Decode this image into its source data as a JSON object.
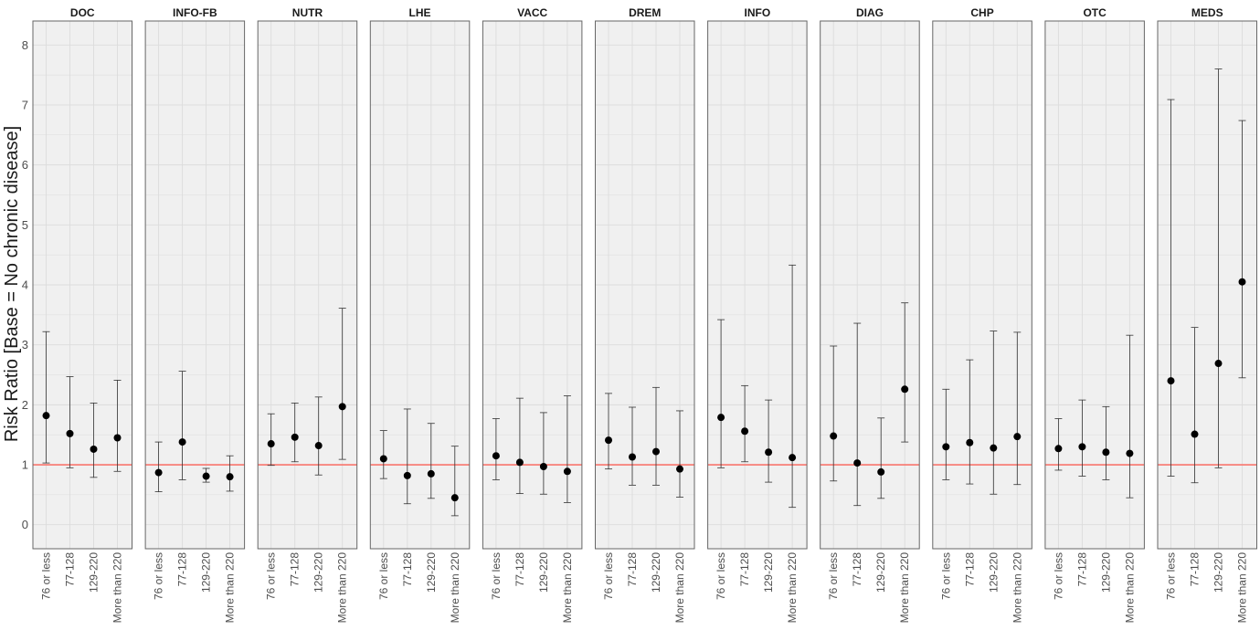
{
  "chart_data": {
    "type": "scatter",
    "subtype": "point-range faceted",
    "ylabel": "Risk Ratio [Base = No chronic disease]",
    "xlabel": "",
    "ylim": [
      -0.4,
      8.4
    ],
    "yticks": [
      0,
      1,
      2,
      3,
      4,
      5,
      6,
      7,
      8
    ],
    "grid": true,
    "reference_line": {
      "y": 1,
      "color": "#f8766d"
    },
    "colors": {
      "panel": "#f0f0f0",
      "grid": "#dcdcdc",
      "point": "#000000",
      "reference": "#f8766d",
      "border": "#666666"
    },
    "categories": [
      "76 or less",
      "77-128",
      "129-220",
      "More than 220"
    ],
    "panels": [
      {
        "name": "DOC",
        "points": [
          {
            "category": "76 or less",
            "estimate": 1.82,
            "lower": 1.03,
            "upper": 3.22
          },
          {
            "category": "77-128",
            "estimate": 1.52,
            "lower": 0.95,
            "upper": 2.47
          },
          {
            "category": "129-220",
            "estimate": 1.26,
            "lower": 0.79,
            "upper": 2.03
          },
          {
            "category": "More than 220",
            "estimate": 1.45,
            "lower": 0.89,
            "upper": 2.41
          }
        ]
      },
      {
        "name": "INFO-FB",
        "points": [
          {
            "category": "76 or less",
            "estimate": 0.87,
            "lower": 0.55,
            "upper": 1.38
          },
          {
            "category": "77-128",
            "estimate": 1.38,
            "lower": 0.75,
            "upper": 2.56
          },
          {
            "category": "129-220",
            "estimate": 0.81,
            "lower": 0.71,
            "upper": 0.94
          },
          {
            "category": "More than 220",
            "estimate": 0.8,
            "lower": 0.56,
            "upper": 1.15
          }
        ]
      },
      {
        "name": "NUTR",
        "points": [
          {
            "category": "76 or less",
            "estimate": 1.35,
            "lower": 0.99,
            "upper": 1.85
          },
          {
            "category": "77-128",
            "estimate": 1.46,
            "lower": 1.05,
            "upper": 2.03
          },
          {
            "category": "129-220",
            "estimate": 1.32,
            "lower": 0.83,
            "upper": 2.13
          },
          {
            "category": "More than 220",
            "estimate": 1.97,
            "lower": 1.09,
            "upper": 3.61
          }
        ]
      },
      {
        "name": "LHE",
        "points": [
          {
            "category": "76 or less",
            "estimate": 1.1,
            "lower": 0.77,
            "upper": 1.57
          },
          {
            "category": "77-128",
            "estimate": 0.82,
            "lower": 0.35,
            "upper": 1.93
          },
          {
            "category": "129-220",
            "estimate": 0.85,
            "lower": 0.44,
            "upper": 1.69
          },
          {
            "category": "More than 220",
            "estimate": 0.45,
            "lower": 0.15,
            "upper": 1.31
          }
        ]
      },
      {
        "name": "VACC",
        "points": [
          {
            "category": "76 or less",
            "estimate": 1.15,
            "lower": 0.75,
            "upper": 1.77
          },
          {
            "category": "77-128",
            "estimate": 1.04,
            "lower": 0.52,
            "upper": 2.11
          },
          {
            "category": "129-220",
            "estimate": 0.97,
            "lower": 0.51,
            "upper": 1.87
          },
          {
            "category": "More than 220",
            "estimate": 0.89,
            "lower": 0.37,
            "upper": 2.15
          }
        ]
      },
      {
        "name": "DREM",
        "points": [
          {
            "category": "76 or less",
            "estimate": 1.41,
            "lower": 0.93,
            "upper": 2.19
          },
          {
            "category": "77-128",
            "estimate": 1.13,
            "lower": 0.66,
            "upper": 1.96
          },
          {
            "category": "129-220",
            "estimate": 1.22,
            "lower": 0.66,
            "upper": 2.29
          },
          {
            "category": "More than 220",
            "estimate": 0.93,
            "lower": 0.46,
            "upper": 1.9
          }
        ]
      },
      {
        "name": "INFO",
        "points": [
          {
            "category": "76 or less",
            "estimate": 1.79,
            "lower": 0.95,
            "upper": 3.42
          },
          {
            "category": "77-128",
            "estimate": 1.56,
            "lower": 1.05,
            "upper": 2.32
          },
          {
            "category": "129-220",
            "estimate": 1.21,
            "lower": 0.71,
            "upper": 2.08
          },
          {
            "category": "More than 220",
            "estimate": 1.12,
            "lower": 0.29,
            "upper": 4.33
          }
        ]
      },
      {
        "name": "DIAG",
        "points": [
          {
            "category": "76 or less",
            "estimate": 1.48,
            "lower": 0.73,
            "upper": 2.98
          },
          {
            "category": "77-128",
            "estimate": 1.03,
            "lower": 0.32,
            "upper": 3.36
          },
          {
            "category": "129-220",
            "estimate": 0.88,
            "lower": 0.44,
            "upper": 1.78
          },
          {
            "category": "More than 220",
            "estimate": 2.26,
            "lower": 1.38,
            "upper": 3.7
          }
        ]
      },
      {
        "name": "CHP",
        "points": [
          {
            "category": "76 or less",
            "estimate": 1.3,
            "lower": 0.75,
            "upper": 2.26
          },
          {
            "category": "77-128",
            "estimate": 1.37,
            "lower": 0.68,
            "upper": 2.75
          },
          {
            "category": "129-220",
            "estimate": 1.28,
            "lower": 0.51,
            "upper": 3.23
          },
          {
            "category": "More than 220",
            "estimate": 1.47,
            "lower": 0.67,
            "upper": 3.21
          }
        ]
      },
      {
        "name": "OTC",
        "points": [
          {
            "category": "76 or less",
            "estimate": 1.27,
            "lower": 0.91,
            "upper": 1.77
          },
          {
            "category": "77-128",
            "estimate": 1.3,
            "lower": 0.81,
            "upper": 2.08
          },
          {
            "category": "129-220",
            "estimate": 1.21,
            "lower": 0.75,
            "upper": 1.97
          },
          {
            "category": "More than 220",
            "estimate": 1.19,
            "lower": 0.45,
            "upper": 3.16
          }
        ]
      },
      {
        "name": "MEDS",
        "points": [
          {
            "category": "76 or less",
            "estimate": 2.4,
            "lower": 0.81,
            "upper": 7.09
          },
          {
            "category": "77-128",
            "estimate": 1.51,
            "lower": 0.7,
            "upper": 3.29
          },
          {
            "category": "129-220",
            "estimate": 2.69,
            "lower": 0.95,
            "upper": 7.6
          },
          {
            "category": "More than 220",
            "estimate": 4.05,
            "lower": 2.45,
            "upper": 6.74
          }
        ]
      }
    ]
  }
}
